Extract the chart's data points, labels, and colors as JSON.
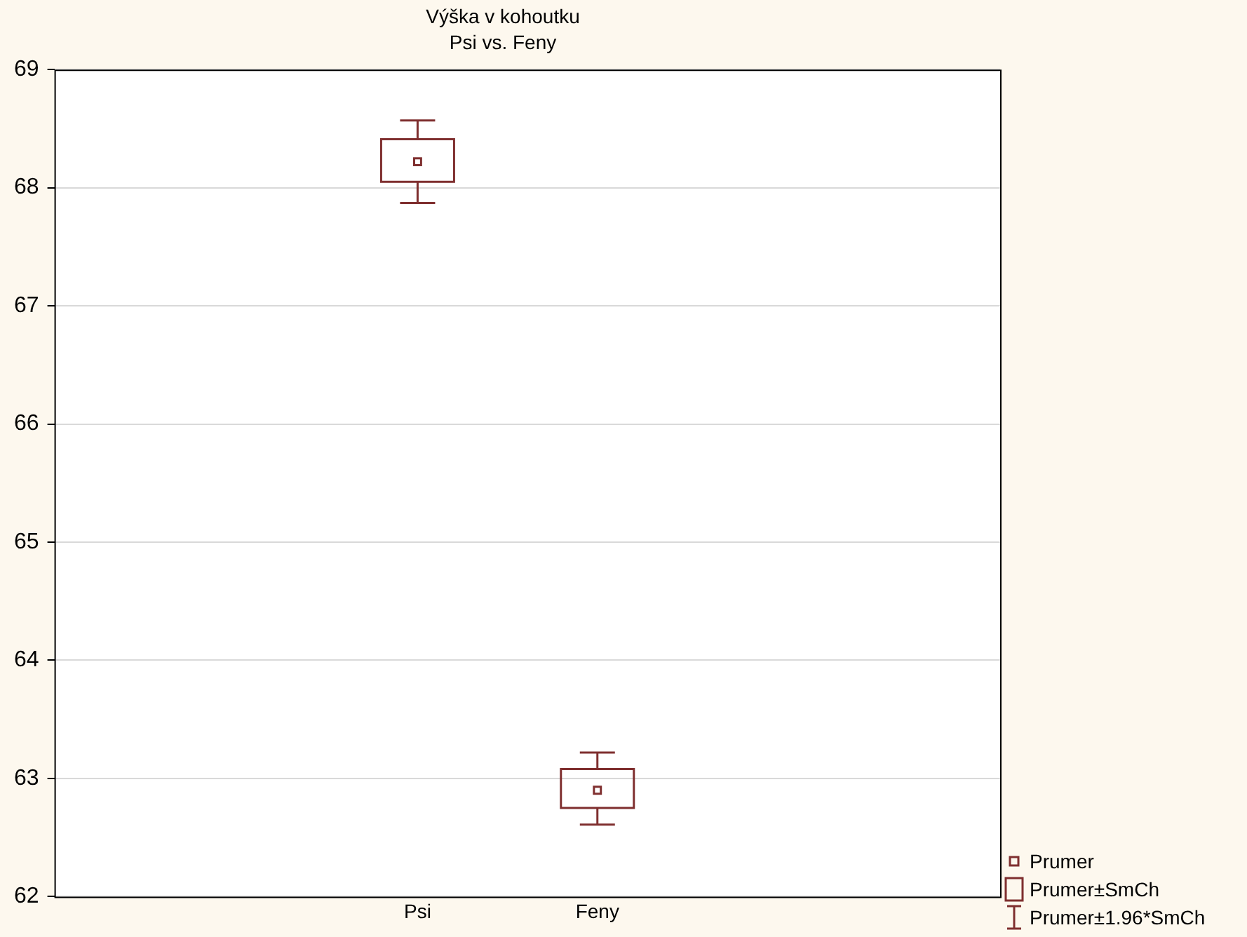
{
  "chart_data": {
    "type": "box",
    "title": "Výška v kohoutku",
    "subtitle": "Psi vs. Feny",
    "categories": [
      "Psi",
      "Feny"
    ],
    "series": [
      {
        "color": "#7f2f2f",
        "boxes": [
          {
            "low": 67.87,
            "q1": 68.05,
            "median": 68.22,
            "q3": 68.41,
            "high": 68.57
          },
          {
            "low": 62.61,
            "q1": 62.75,
            "median": 62.9,
            "q3": 63.08,
            "high": 63.22
          }
        ]
      }
    ],
    "marker": "square",
    "annotations": [
      "Prumer",
      "Prumer±SmCh",
      "Prumer±1.96*SmCh"
    ],
    "ylim": [
      62,
      69
    ],
    "yticks": [
      62,
      63,
      64,
      65,
      66,
      67,
      68,
      69
    ],
    "grid": "y"
  }
}
